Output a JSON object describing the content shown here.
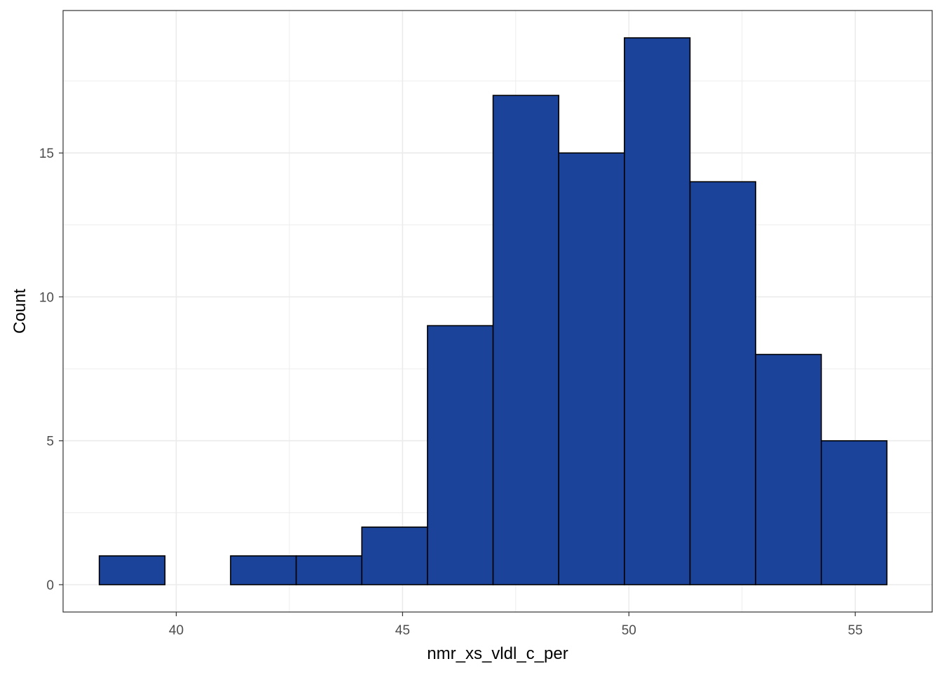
{
  "chart_data": {
    "type": "bar",
    "subtype": "histogram",
    "title": "",
    "xlabel": "nmr_xs_vldl_c_per",
    "ylabel": "Count",
    "xlim": [
      37.5,
      56.7
    ],
    "ylim": [
      -0.95,
      19.95
    ],
    "x_ticks": [
      40,
      45,
      50,
      55
    ],
    "x_tick_labels": [
      "40",
      "45",
      "50",
      "55"
    ],
    "y_ticks": [
      0,
      5,
      10,
      15
    ],
    "y_tick_labels": [
      "0",
      "5",
      "10",
      "15"
    ],
    "grid": true,
    "bins": [
      {
        "x0": 38.3,
        "x1": 39.75,
        "count": 1
      },
      {
        "x0": 39.75,
        "x1": 41.2,
        "count": 0
      },
      {
        "x0": 41.2,
        "x1": 42.65,
        "count": 1
      },
      {
        "x0": 42.65,
        "x1": 44.1,
        "count": 1
      },
      {
        "x0": 44.1,
        "x1": 45.55,
        "count": 2
      },
      {
        "x0": 45.55,
        "x1": 47.0,
        "count": 9
      },
      {
        "x0": 47.0,
        "x1": 48.45,
        "count": 17
      },
      {
        "x0": 48.45,
        "x1": 49.9,
        "count": 15
      },
      {
        "x0": 49.9,
        "x1": 51.35,
        "count": 19
      },
      {
        "x0": 51.35,
        "x1": 52.8,
        "count": 14
      },
      {
        "x0": 52.8,
        "x1": 54.25,
        "count": 8
      },
      {
        "x0": 54.25,
        "x1": 55.7,
        "count": 5
      }
    ],
    "colors": {
      "bar_fill": "#1a4399",
      "bar_stroke": "#000000",
      "grid": "#ebebeb",
      "panel_border": "#333333"
    }
  }
}
